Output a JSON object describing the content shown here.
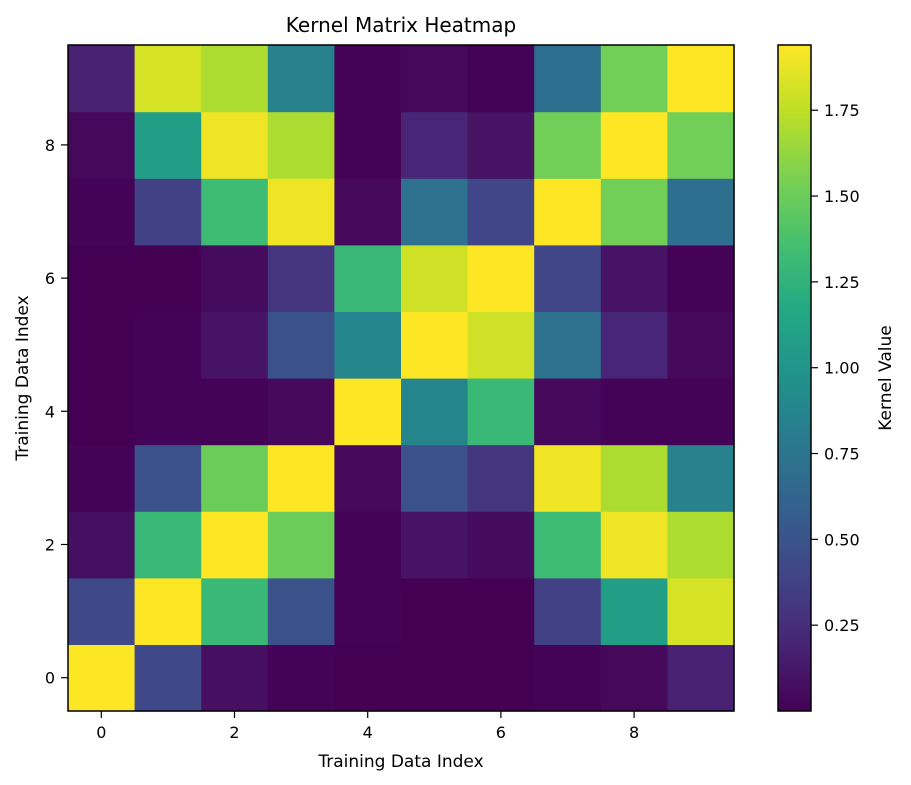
{
  "chart_data": {
    "type": "heatmap",
    "title": "Kernel Matrix Heatmap",
    "xlabel": "Training Data Index",
    "ylabel": "Training Data Index",
    "colorbar_label": "Kernel Value",
    "colormap": "viridis",
    "x_ticks": [
      "0",
      "2",
      "4",
      "6",
      "8"
    ],
    "y_ticks": [
      "0",
      "2",
      "4",
      "6",
      "8"
    ],
    "colorbar_ticks": [
      "0.25",
      "0.50",
      "0.75",
      "1.00",
      "1.25",
      "1.50",
      "1.75"
    ],
    "vmin": 0.0,
    "vmax": 1.94,
    "matrix": [
      [
        1.94,
        0.42,
        0.08,
        0.01,
        0.0,
        0.0,
        0.0,
        0.01,
        0.04,
        0.18
      ],
      [
        0.42,
        1.94,
        1.3,
        0.48,
        0.01,
        0.0,
        0.0,
        0.37,
        1.08,
        1.82
      ],
      [
        0.08,
        1.3,
        1.94,
        1.5,
        0.01,
        0.1,
        0.06,
        1.32,
        1.9,
        1.7
      ],
      [
        0.01,
        0.48,
        1.5,
        1.94,
        0.04,
        0.48,
        0.3,
        1.9,
        1.7,
        0.85
      ],
      [
        0.0,
        0.01,
        0.01,
        0.04,
        1.94,
        0.88,
        1.3,
        0.04,
        0.01,
        0.01
      ],
      [
        0.0,
        0.01,
        0.1,
        0.48,
        0.88,
        1.94,
        1.8,
        0.72,
        0.2,
        0.04
      ],
      [
        0.0,
        0.0,
        0.06,
        0.3,
        1.3,
        1.8,
        1.94,
        0.4,
        0.1,
        0.01
      ],
      [
        0.01,
        0.37,
        1.32,
        1.9,
        0.04,
        0.72,
        0.4,
        1.94,
        1.52,
        0.7
      ],
      [
        0.04,
        1.08,
        1.9,
        1.7,
        0.01,
        0.2,
        0.1,
        1.52,
        1.94,
        1.52
      ],
      [
        0.18,
        1.82,
        1.7,
        0.85,
        0.01,
        0.04,
        0.01,
        0.7,
        1.52,
        1.94
      ]
    ]
  }
}
